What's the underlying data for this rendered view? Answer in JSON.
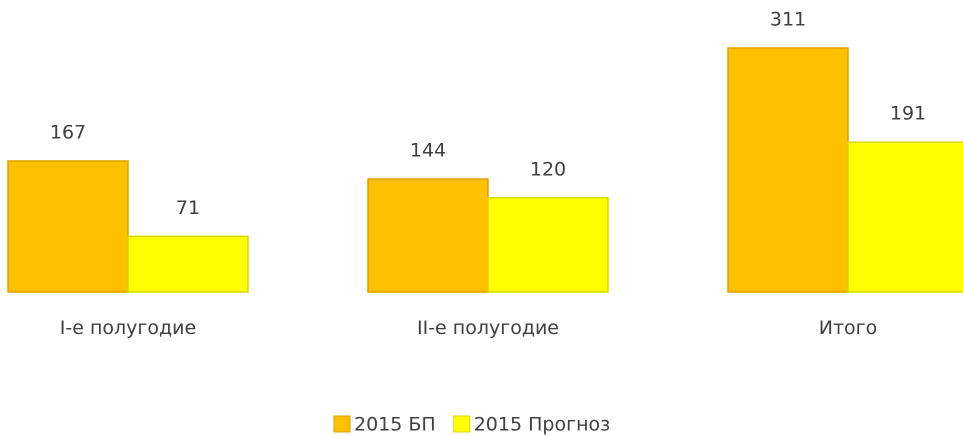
{
  "chart_data": {
    "type": "bar",
    "categories": [
      "I-e полугодие",
      "II-e полугодие",
      "Итого"
    ],
    "series": [
      {
        "name": "2015 БП",
        "color": "#ffc000",
        "values": [
          167,
          144,
          311
        ]
      },
      {
        "name": "2015 Прогноз",
        "color": "#ffff00",
        "values": [
          71,
          120,
          191
        ]
      }
    ],
    "legend": "bottom"
  }
}
